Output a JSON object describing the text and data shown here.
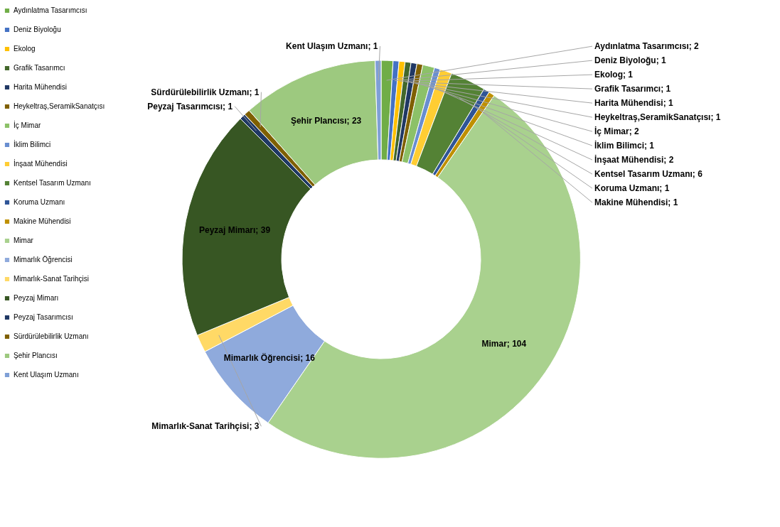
{
  "chart_data": {
    "type": "donut",
    "categories": [
      "Aydınlatma Tasarımcısı",
      "Deniz Biyoloğu",
      "Ekolog",
      "Grafik Tasarımcı",
      "Harita Mühendisi",
      "Heykeltraş,SeramikSanatçısı",
      "İç Mimar",
      "İklim Bilimci",
      "İnşaat Mühendisi",
      "Kentsel Tasarım Uzmanı",
      "Koruma Uzmanı",
      "Makine Mühendisi",
      "Mimar",
      "Mimarlık Öğrencisi",
      "Mimarlık-Sanat Tarihçisi",
      "Peyzaj Mimarı",
      "Peyzaj Tasarımcısı",
      "Sürdürülebilirlik Uzmanı",
      "Şehir Plancısı",
      "Kent Ulaşım Uzmanı"
    ],
    "values": [
      2,
      1,
      1,
      1,
      1,
      1,
      2,
      1,
      2,
      6,
      1,
      1,
      104,
      16,
      3,
      39,
      1,
      1,
      23,
      1
    ],
    "colors": [
      "#70ad47",
      "#4472c4",
      "#ffc000",
      "#43682b",
      "#203864",
      "#7f6000",
      "#8cc168",
      "#698ed0",
      "#ffcd33",
      "#548235",
      "#2f5597",
      "#bf9000",
      "#a9d18e",
      "#8faadc",
      "#ffd966",
      "#375623",
      "#1f3864",
      "#7f6000",
      "#9dc97f",
      "#7f9fd6"
    ],
    "value_labels": [
      "Aydınlatma Tasarımcısı; 2",
      "Deniz Biyoloğu; 1",
      "Ekolog; 1",
      "Grafik Tasarımcı; 1",
      "Harita Mühendisi; 1",
      "Heykeltraş,SeramikSanatçısı; 1",
      "İç Mimar; 2",
      "İklim Bilimci; 1",
      "İnşaat Mühendisi; 2",
      "Kentsel Tasarım Uzmanı; 6",
      "Koruma Uzmanı; 1",
      "Makine Mühendisi; 1",
      "Mimar; 104",
      "Mimarlık Öğrencisi; 16",
      "Mimarlık-Sanat Tarihçisi; 3",
      "Peyzaj Mimarı; 39",
      "Peyzaj Tasarımcısı; 1",
      "Sürdürülebilirlik Uzmanı; 1",
      "Şehir Plancısı; 23",
      "Kent Ulaşım Uzmanı; 1"
    ],
    "legend": "left"
  }
}
